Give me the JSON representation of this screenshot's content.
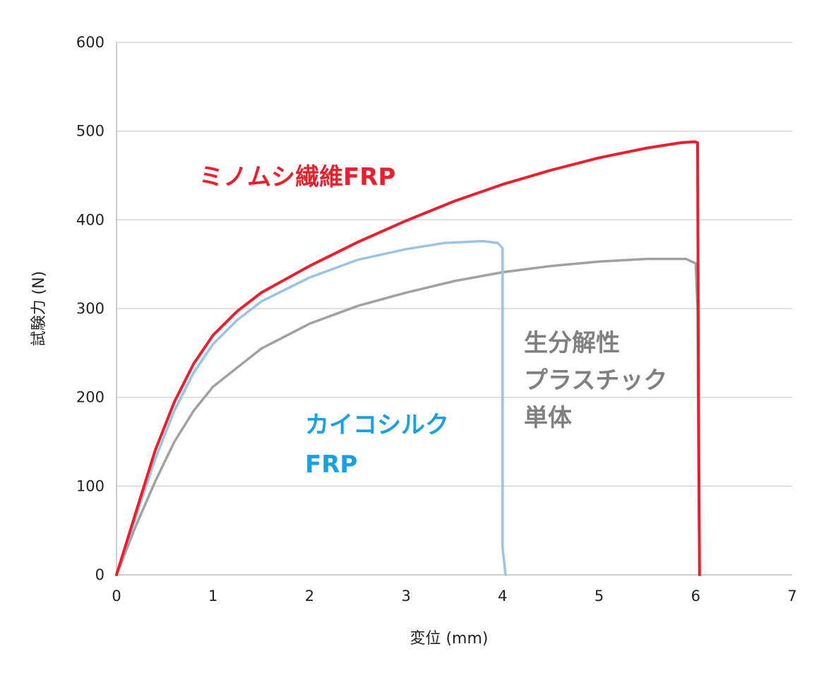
{
  "chart_data": {
    "type": "line",
    "title": "",
    "xlabel": "変位 (mm)",
    "ylabel": "試験力 (N)",
    "xlim": [
      0,
      7
    ],
    "ylim": [
      0,
      600
    ],
    "xticks": [
      "0",
      "1",
      "2",
      "3",
      "4",
      "5",
      "6",
      "7"
    ],
    "yticks": [
      "0",
      "100",
      "200",
      "300",
      "400",
      "500",
      "600"
    ],
    "grid": true,
    "legend": "none",
    "series": [
      {
        "name": "ミノムシ繊維FRP",
        "label_lines": [
          "ミノムシ繊維FRP"
        ],
        "color": "#e8202e",
        "points": [
          [
            0,
            0
          ],
          [
            0.2,
            70
          ],
          [
            0.4,
            140
          ],
          [
            0.6,
            195
          ],
          [
            0.8,
            238
          ],
          [
            1.0,
            270
          ],
          [
            1.25,
            297
          ],
          [
            1.5,
            318
          ],
          [
            2.0,
            348
          ],
          [
            2.5,
            375
          ],
          [
            3.0,
            399
          ],
          [
            3.5,
            421
          ],
          [
            4.0,
            440
          ],
          [
            4.5,
            456
          ],
          [
            5.0,
            470
          ],
          [
            5.5,
            481
          ],
          [
            5.85,
            487
          ],
          [
            5.99,
            488
          ],
          [
            6.02,
            487
          ],
          [
            6.03,
            200
          ],
          [
            6.04,
            0
          ]
        ]
      },
      {
        "name": "カイコシルクFRP",
        "label_lines": [
          "カイコシルク",
          "FRP"
        ],
        "color": "#9cc3e4",
        "points": [
          [
            0,
            0
          ],
          [
            0.2,
            65
          ],
          [
            0.4,
            130
          ],
          [
            0.6,
            185
          ],
          [
            0.8,
            228
          ],
          [
            1.0,
            260
          ],
          [
            1.25,
            287
          ],
          [
            1.5,
            308
          ],
          [
            2.0,
            335
          ],
          [
            2.5,
            355
          ],
          [
            3.0,
            367
          ],
          [
            3.4,
            374
          ],
          [
            3.8,
            376
          ],
          [
            3.95,
            374
          ],
          [
            4.0,
            368
          ],
          [
            4.0,
            200
          ],
          [
            4.0,
            30
          ],
          [
            4.03,
            0
          ]
        ]
      },
      {
        "name": "生分解性プラスチック単体",
        "label_lines": [
          "生分解性",
          "プラスチック",
          "単体"
        ],
        "color": "#a1a1a1",
        "points": [
          [
            0,
            0
          ],
          [
            0.2,
            55
          ],
          [
            0.4,
            105
          ],
          [
            0.6,
            150
          ],
          [
            0.8,
            185
          ],
          [
            1.0,
            212
          ],
          [
            1.5,
            255
          ],
          [
            2.0,
            283
          ],
          [
            2.5,
            303
          ],
          [
            3.0,
            318
          ],
          [
            3.5,
            331
          ],
          [
            4.0,
            341
          ],
          [
            4.5,
            348
          ],
          [
            5.0,
            353
          ],
          [
            5.5,
            356
          ],
          [
            5.9,
            356
          ],
          [
            6.0,
            351
          ],
          [
            6.02,
            300
          ],
          [
            6.03,
            100
          ],
          [
            6.04,
            0
          ]
        ]
      }
    ]
  }
}
